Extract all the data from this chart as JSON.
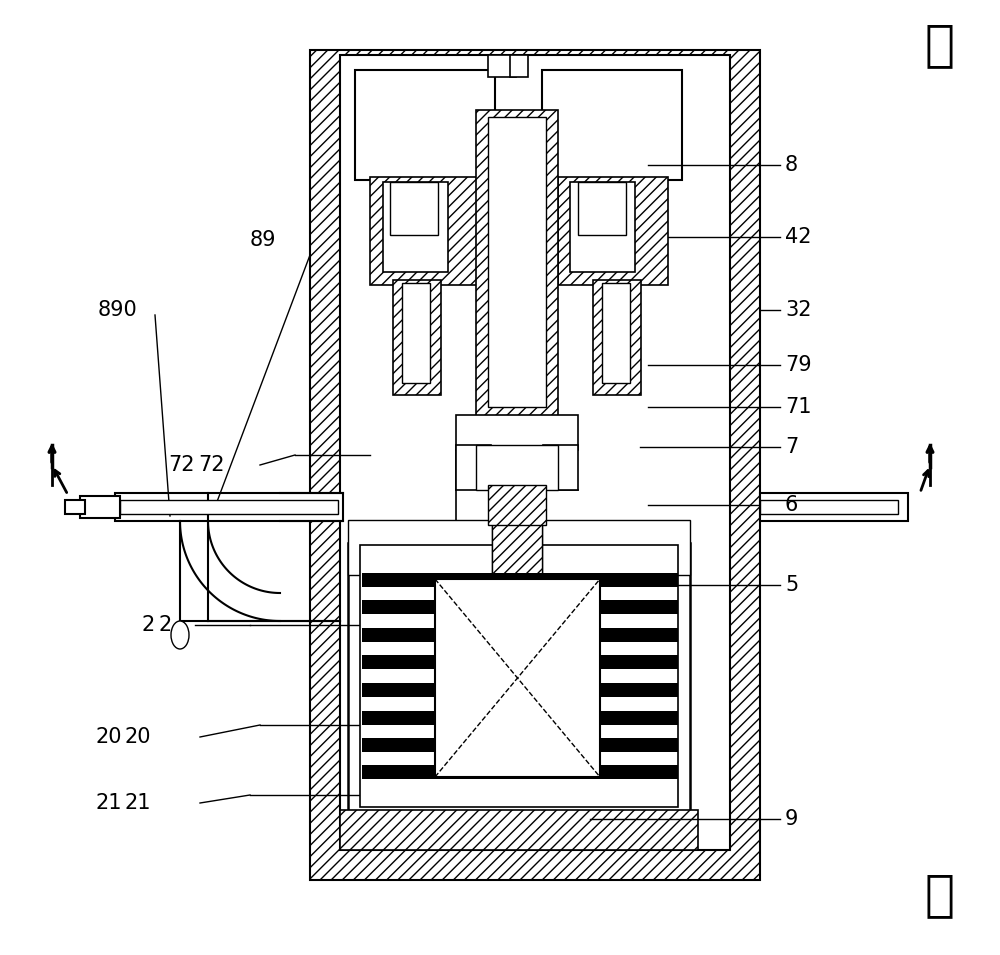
{
  "bg_color": "#ffffff",
  "lc": "#000000",
  "figsize": [
    10.0,
    9.55
  ],
  "dpi": 100,
  "label_hou": "后",
  "label_qian": "前"
}
